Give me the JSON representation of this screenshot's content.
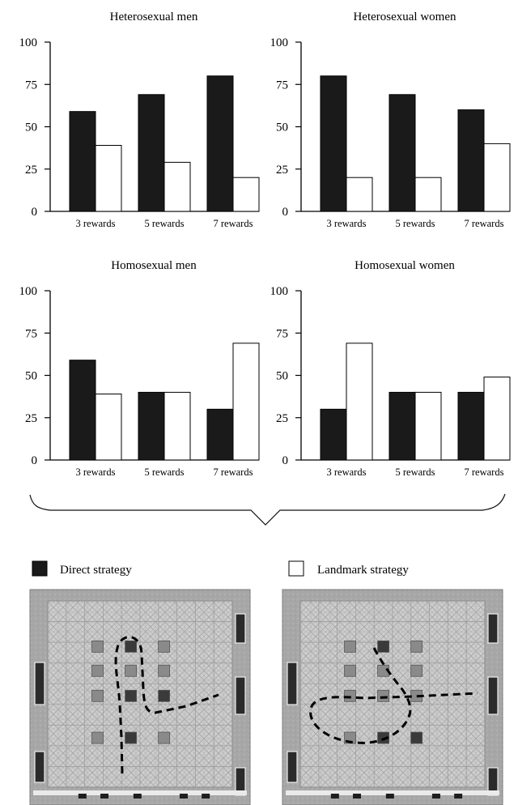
{
  "chart_data": [
    {
      "type": "bar",
      "title": "Heterosexual men",
      "categories": [
        "3 rewards",
        "5 rewards",
        "7 rewards"
      ],
      "series": [
        {
          "name": "Direct strategy",
          "values": [
            59,
            69,
            80
          ]
        },
        {
          "name": "Landmark strategy",
          "values": [
            39,
            29,
            20
          ]
        }
      ],
      "yticks": [
        "0",
        "25",
        "50",
        "75",
        "100"
      ],
      "ylim": [
        0,
        100
      ],
      "xlabel": "",
      "ylabel": "",
      "grid": false
    },
    {
      "type": "bar",
      "title": "Heterosexual women",
      "categories": [
        "3 rewards",
        "5 rewards",
        "7 rewards"
      ],
      "series": [
        {
          "name": "Direct strategy",
          "values": [
            80,
            69,
            60
          ]
        },
        {
          "name": "Landmark strategy",
          "values": [
            20,
            20,
            40
          ]
        }
      ],
      "yticks": [
        "0",
        "25",
        "50",
        "75",
        "100"
      ],
      "ylim": [
        0,
        100
      ],
      "xlabel": "",
      "ylabel": "",
      "grid": false
    },
    {
      "type": "bar",
      "title": "Homosexual men",
      "categories": [
        "3 rewards",
        "5 rewards",
        "7 rewards"
      ],
      "series": [
        {
          "name": "Direct strategy",
          "values": [
            59,
            40,
            30
          ]
        },
        {
          "name": "Landmark strategy",
          "values": [
            39,
            40,
            69
          ]
        }
      ],
      "yticks": [
        "0",
        "25",
        "50",
        "75",
        "100"
      ],
      "ylim": [
        0,
        100
      ],
      "xlabel": "",
      "ylabel": "",
      "grid": false
    },
    {
      "type": "bar",
      "title": "Homosexual women",
      "categories": [
        "3 rewards",
        "5 rewards",
        "7 rewards"
      ],
      "series": [
        {
          "name": "Direct strategy",
          "values": [
            30,
            40,
            40
          ]
        },
        {
          "name": "Landmark strategy",
          "values": [
            69,
            40,
            49
          ]
        }
      ],
      "yticks": [
        "0",
        "25",
        "50",
        "75",
        "100"
      ],
      "ylim": [
        0,
        100
      ],
      "xlabel": "",
      "ylabel": "",
      "grid": false
    }
  ],
  "legend": {
    "placement": "below charts",
    "items": [
      {
        "label": "Direct strategy",
        "color": "#1a1a1a"
      },
      {
        "label": "Landmark strategy",
        "color": "#ffffff"
      }
    ]
  },
  "colors": {
    "direct": "#1a1a1a",
    "landmark": "#ffffff",
    "axis": "#000000",
    "arena_frame": "#a9a9a9",
    "arena_floor": "#c9c9c9",
    "tile_light": "#d6d6d6",
    "tile_dark": "#9a9a9a",
    "box_light": "#8a8a8a",
    "box_dark": "#3a3a3a"
  },
  "arena_images": [
    {
      "strategy": "Direct strategy",
      "icons": [
        "maze-arena-icon",
        "dashed-path-icon"
      ]
    },
    {
      "strategy": "Landmark strategy",
      "icons": [
        "maze-arena-icon",
        "dashed-path-icon"
      ]
    }
  ]
}
